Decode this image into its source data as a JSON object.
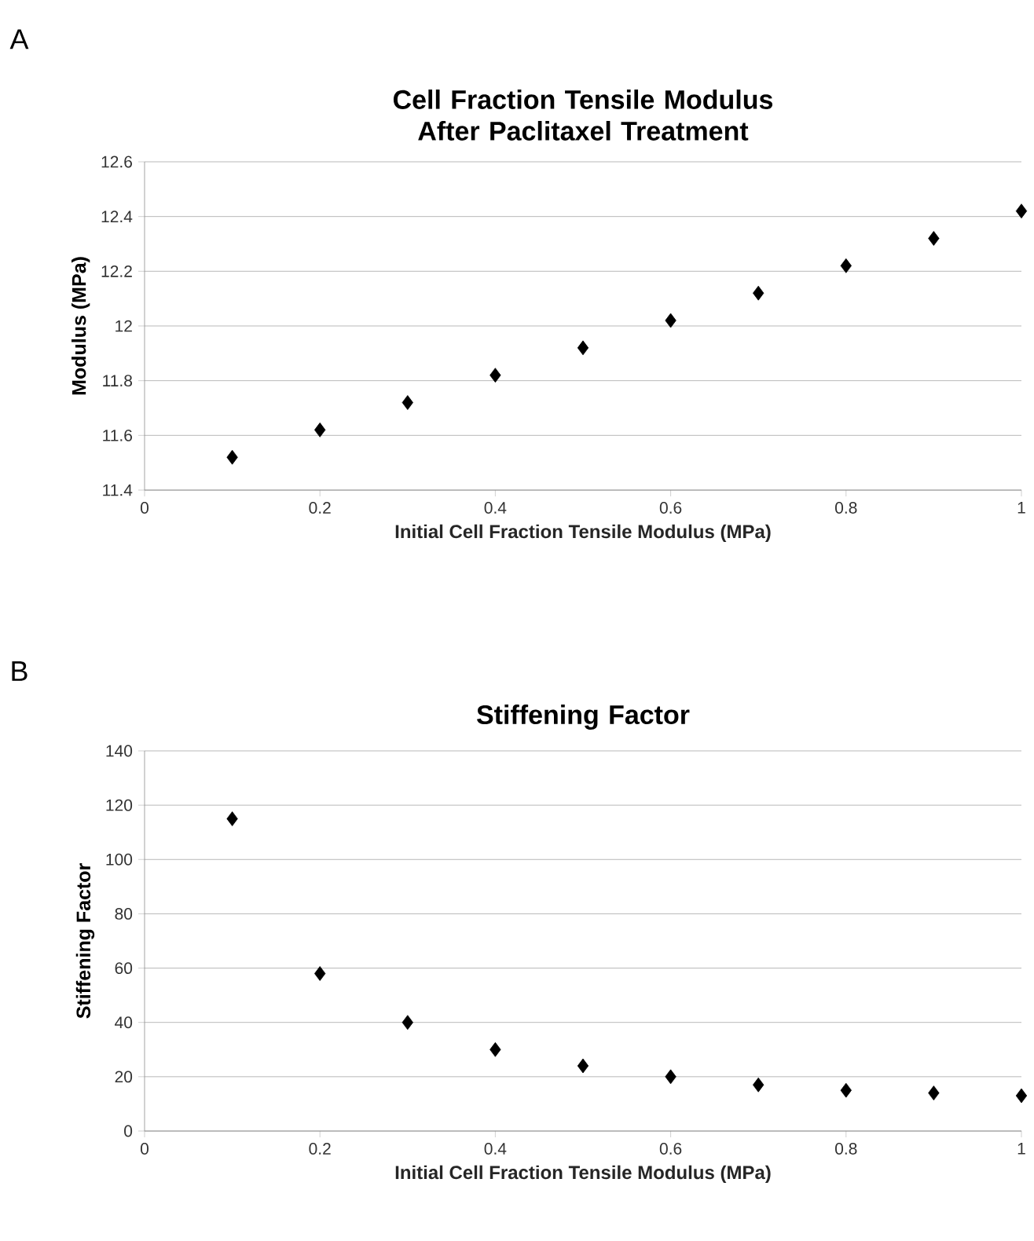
{
  "chart_data": [
    {
      "type": "scatter",
      "title": "Cell Fraction Tensile Modulus After Paclitaxel Treatment",
      "xlabel": "Initial Cell Fraction Tensile Modulus (MPa)",
      "ylabel": "Modulus (MPa)",
      "annotations": [
        "A"
      ],
      "x": [
        0.1,
        0.2,
        0.3,
        0.4,
        0.5,
        0.6,
        0.7,
        0.8,
        0.9,
        1.0
      ],
      "series": [
        {
          "color": "#000000",
          "values": [
            11.52,
            11.62,
            11.72,
            11.82,
            11.92,
            12.02,
            12.12,
            12.22,
            12.32,
            12.42
          ]
        }
      ],
      "xlim": [
        0,
        1
      ],
      "xticks": [
        0,
        0.2,
        0.4,
        0.6,
        0.8,
        1
      ],
      "ylim": [
        11.4,
        12.6
      ],
      "yticks": [
        11.4,
        11.6,
        11.8,
        12,
        12.2,
        12.4,
        12.6
      ],
      "grid": "y",
      "marker": "diamond"
    },
    {
      "type": "scatter",
      "title": "Stiffening Factor",
      "xlabel": "Initial Cell Fraction Tensile Modulus (MPa)",
      "ylabel": "Stiffening Factor",
      "annotations": [
        "B"
      ],
      "x": [
        0.1,
        0.2,
        0.3,
        0.4,
        0.5,
        0.6,
        0.7,
        0.8,
        0.9,
        1.0
      ],
      "series": [
        {
          "color": "#000000",
          "values": [
            115,
            58,
            40,
            30,
            24,
            20,
            17,
            15,
            14,
            13
          ]
        }
      ],
      "xlim": [
        0,
        1
      ],
      "xticks": [
        0,
        0.2,
        0.4,
        0.6,
        0.8,
        1
      ],
      "ylim": [
        0,
        140
      ],
      "yticks": [
        0,
        20,
        40,
        60,
        80,
        100,
        120,
        140
      ],
      "grid": "y",
      "marker": "diamond"
    }
  ]
}
